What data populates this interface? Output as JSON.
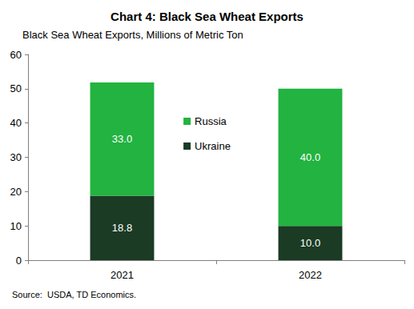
{
  "chart_data": {
    "type": "bar",
    "title": "Chart 4: Black Sea Wheat Exports",
    "ylabel": "Black Sea Wheat Exports, Millions of Metric Ton",
    "source": "Source:  USDA, TD Economics.",
    "categories": [
      "2021",
      "2022"
    ],
    "series": [
      {
        "name": "Ukraine",
        "color": "#1b3b24",
        "values": [
          18.8,
          10.0
        ],
        "value_labels": [
          "18.8",
          "10.0"
        ]
      },
      {
        "name": "Russia",
        "color": "#22b340",
        "values": [
          33.0,
          40.0
        ],
        "value_labels": [
          "33.0",
          "40.0"
        ]
      }
    ],
    "ylim": [
      0,
      60
    ],
    "yticks": [
      0,
      10,
      20,
      30,
      40,
      50,
      60
    ],
    "stacked": true,
    "data_labels": true,
    "grid": false,
    "legend": "center"
  }
}
